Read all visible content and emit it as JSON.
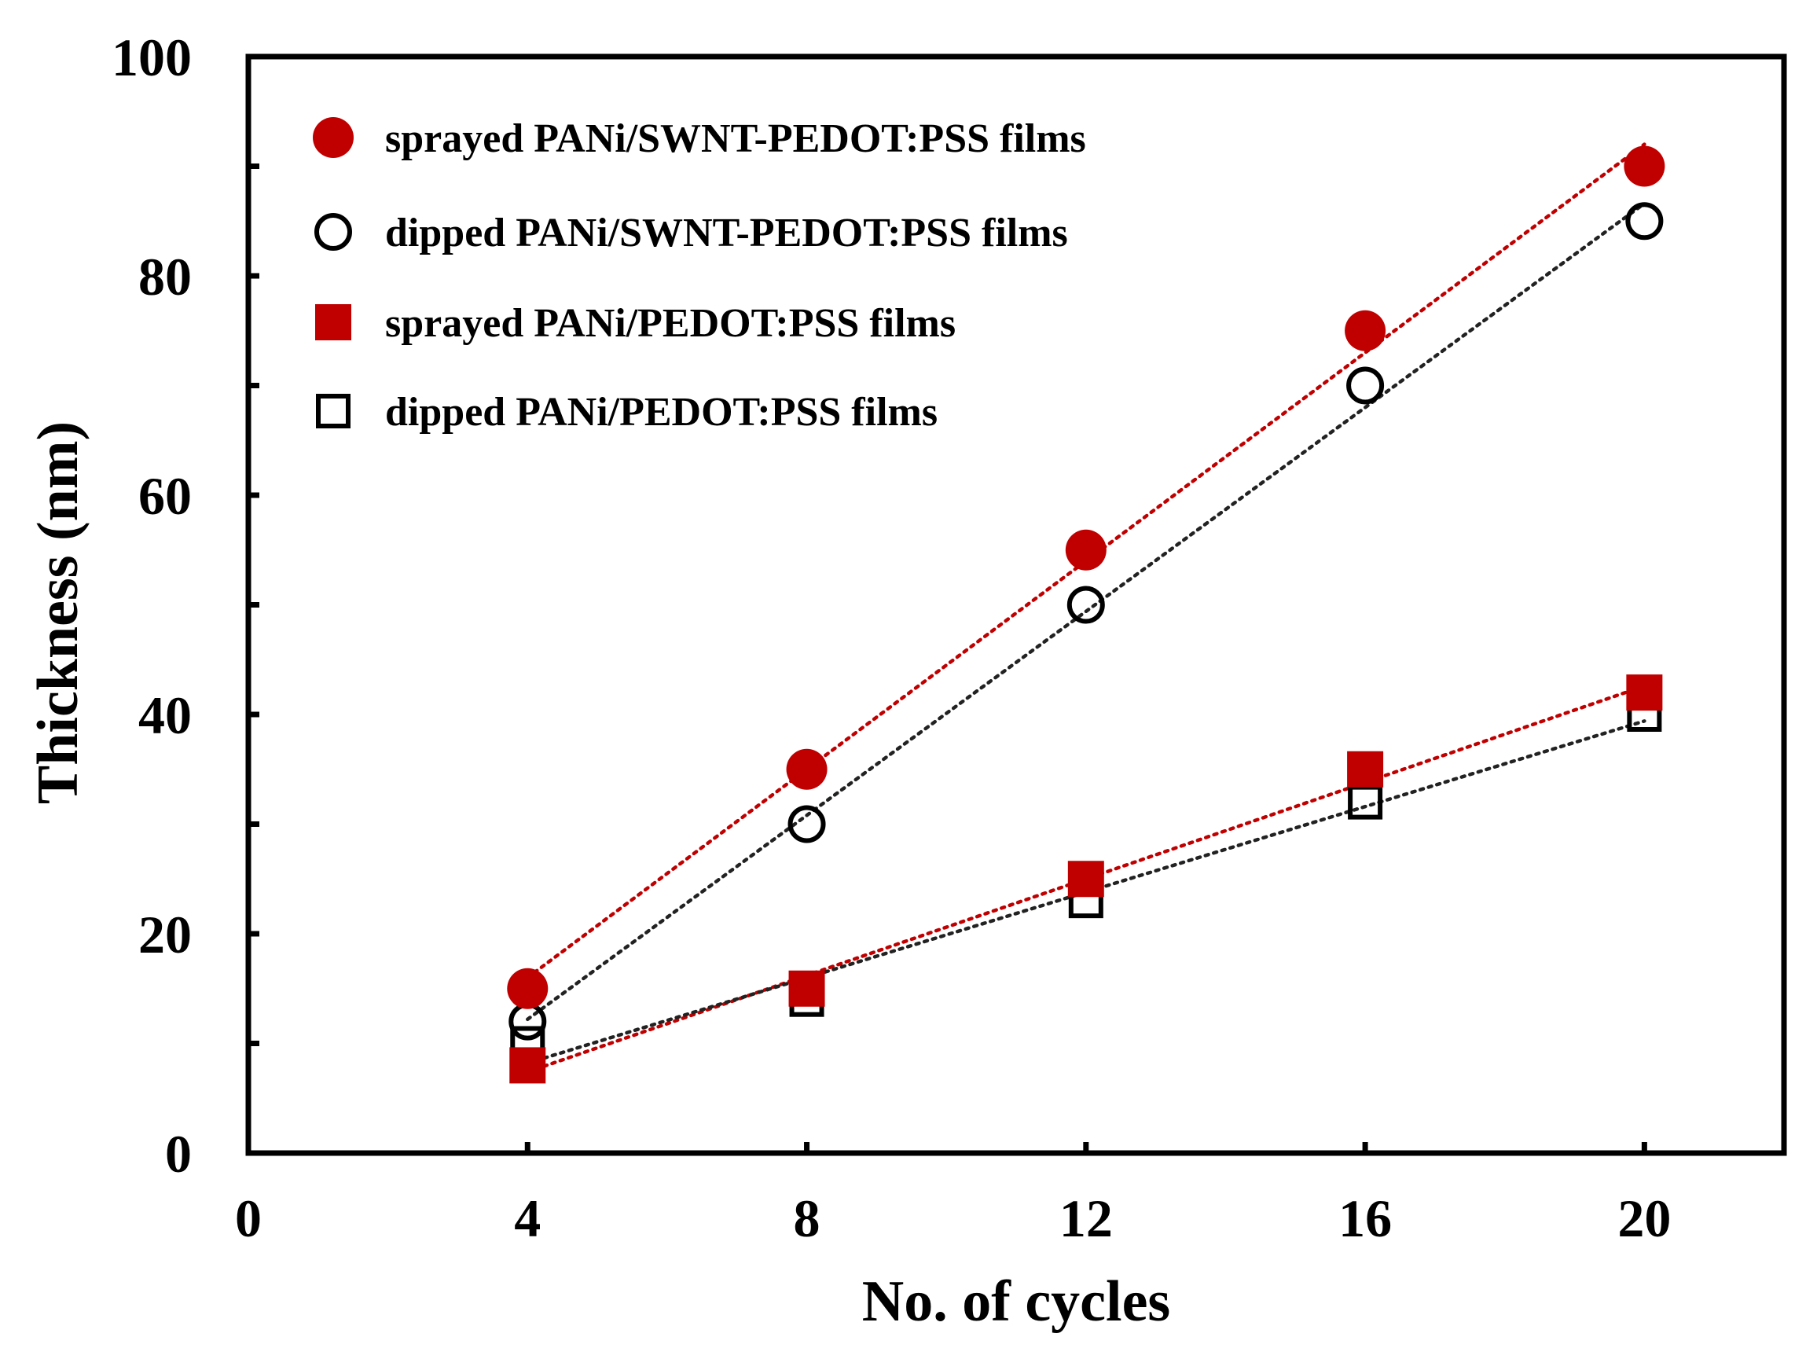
{
  "chart_data": {
    "type": "scatter",
    "title": "",
    "xlabel": "No. of cycles",
    "ylabel": "Thickness (nm)",
    "xlim": [
      0,
      22
    ],
    "ylim": [
      0,
      100
    ],
    "xticks": [
      0,
      4,
      8,
      12,
      16,
      20
    ],
    "yticks": [
      0,
      20,
      40,
      60,
      80,
      100
    ],
    "grid": false,
    "legend_position": "top-left",
    "trendlines": "linear, dotted",
    "series": [
      {
        "name": "sprayed PANi/SWNT-PEDOT:PSS films",
        "marker": "circle-filled",
        "color": "#c00000",
        "x": [
          4,
          8,
          12,
          16,
          20
        ],
        "y": [
          15,
          35,
          55,
          75,
          90
        ]
      },
      {
        "name": "dipped PANi/SWNT-PEDOT:PSS films",
        "marker": "circle-open",
        "color": "#000000",
        "x": [
          4,
          8,
          12,
          16,
          20
        ],
        "y": [
          12,
          30,
          50,
          70,
          85
        ]
      },
      {
        "name": "sprayed PANi/PEDOT:PSS films",
        "marker": "square-filled",
        "color": "#c00000",
        "x": [
          4,
          8,
          12,
          16,
          20
        ],
        "y": [
          8,
          15,
          25,
          35,
          42
        ]
      },
      {
        "name": "dipped PANi/PEDOT:PSS films",
        "marker": "square-open",
        "color": "#000000",
        "x": [
          4,
          8,
          12,
          16,
          20
        ],
        "y": [
          10,
          14,
          23,
          32,
          40
        ]
      }
    ]
  }
}
